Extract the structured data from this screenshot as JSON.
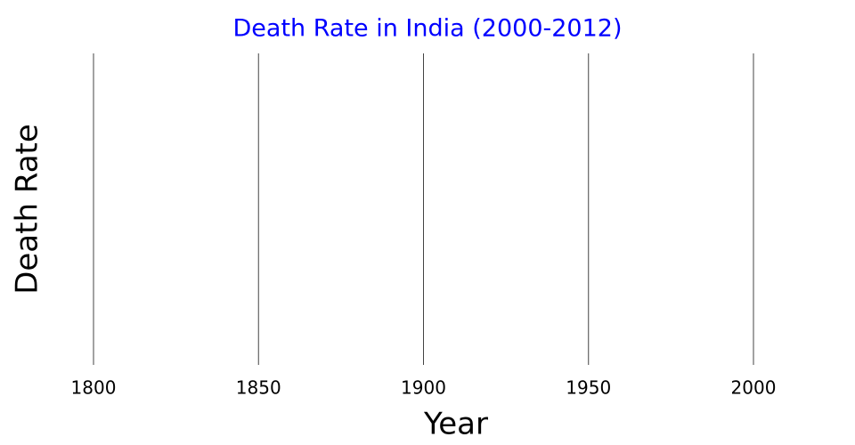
{
  "chart_data": {
    "type": "line",
    "title": "Death Rate in India (2000-2012)",
    "x_label": "Year",
    "y_label": "Death Rate",
    "xlim": [
      1800,
      2000
    ],
    "xticks": [
      1800,
      1850,
      1900,
      1950,
      2000
    ],
    "grid": true,
    "title_color": "#0000ff"
  }
}
